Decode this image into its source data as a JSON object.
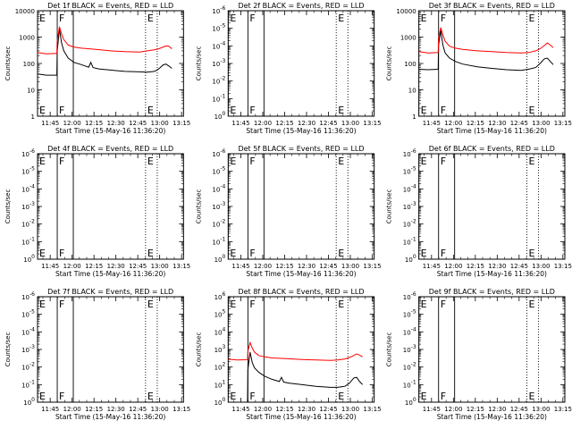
{
  "chart_data": [
    {
      "type": "line",
      "title": "Det 1f BLACK = Events, RED = LLD",
      "xlabel": "Start Time (15-May-16 11:36:20)",
      "ylabel": "Counts/sec",
      "x_tick_labels": [
        "11:45",
        "12:00",
        "12:15",
        "12:30",
        "12:45",
        "13:00",
        "13:15"
      ],
      "xlim_minutes": [
        0,
        100
      ],
      "ylim": [
        1,
        10000
      ],
      "y_scale": "log",
      "y_tick_labels": [
        "1",
        "10",
        "100",
        "1000",
        "10000"
      ],
      "markers": [
        {
          "x": 0,
          "label": "E",
          "style": "dotted"
        },
        {
          "x": 13.5,
          "label": "F",
          "style": "solid"
        },
        {
          "x": 24.5,
          "label": "",
          "style": "solid"
        },
        {
          "x": 74,
          "label": "E",
          "style": "dotted"
        },
        {
          "x": 82,
          "label": "",
          "style": "dotted"
        }
      ],
      "series": [
        {
          "color": "#000000",
          "x": [
            0,
            6,
            13.2,
            13.5,
            15,
            16.5,
            18,
            21,
            25,
            30,
            35,
            36.5,
            38,
            42,
            50,
            60,
            70,
            75,
            80,
            83,
            86,
            88,
            90,
            92
          ],
          "values": [
            40,
            36,
            36,
            300,
            2000,
            600,
            300,
            160,
            110,
            90,
            72,
            110,
            70,
            62,
            56,
            50,
            48,
            47,
            50,
            62,
            88,
            95,
            80,
            65
          ]
        },
        {
          "color": "#ff0000",
          "x": [
            0,
            6,
            13.2,
            13.5,
            15,
            16.5,
            18,
            21,
            25,
            30,
            40,
            50,
            60,
            70,
            75,
            80,
            83,
            86,
            88,
            90,
            92
          ],
          "values": [
            260,
            230,
            240,
            700,
            2500,
            1300,
            800,
            500,
            420,
            380,
            340,
            300,
            280,
            270,
            300,
            330,
            360,
            420,
            460,
            450,
            360
          ]
        }
      ]
    },
    {
      "type": "line",
      "title": "Det 2f BLACK = Events, RED = LLD",
      "xlabel": "Start Time (15-May-16 11:36:20)",
      "ylabel": "Counts/sec",
      "x_tick_labels": [
        "11:45",
        "12:00",
        "12:15",
        "12:30",
        "12:45",
        "13:00",
        "13:15"
      ],
      "xlim_minutes": [
        0,
        100
      ],
      "ylim": [
        1,
        1000000
      ],
      "y_scale": "log",
      "y_tick_labels": [
        "10^0",
        "10^-1",
        "10^-2",
        "10^-3",
        "10^-4",
        "10^-5",
        "10^-6"
      ],
      "markers": [
        {
          "x": 0,
          "label": "E",
          "style": "dotted"
        },
        {
          "x": 13.5,
          "label": "F",
          "style": "solid"
        },
        {
          "x": 24.5,
          "label": "",
          "style": "solid"
        },
        {
          "x": 74,
          "label": "E",
          "style": "dotted"
        },
        {
          "x": 82,
          "label": "",
          "style": "dotted"
        }
      ],
      "series": []
    },
    {
      "type": "line",
      "title": "Det 3f BLACK = Events, RED = LLD",
      "xlabel": "Start Time (15-May-16 11:36:20)",
      "ylabel": "Counts/sec",
      "x_tick_labels": [
        "11:45",
        "12:00",
        "12:15",
        "12:30",
        "12:45",
        "13:00",
        "13:15"
      ],
      "xlim_minutes": [
        0,
        100
      ],
      "ylim": [
        1,
        10000
      ],
      "y_scale": "log",
      "y_tick_labels": [
        "1",
        "10",
        "100",
        "1000",
        "10000"
      ],
      "markers": [
        {
          "x": 0,
          "label": "E",
          "style": "dotted"
        },
        {
          "x": 13.5,
          "label": "F",
          "style": "solid"
        },
        {
          "x": 24.5,
          "label": "",
          "style": "solid"
        },
        {
          "x": 74,
          "label": "E",
          "style": "dotted"
        },
        {
          "x": 82,
          "label": "",
          "style": "dotted"
        }
      ],
      "series": [
        {
          "color": "#000000",
          "x": [
            0,
            6,
            13.2,
            13.5,
            15,
            16.5,
            18,
            21,
            25,
            30,
            40,
            50,
            60,
            70,
            75,
            80,
            83,
            86,
            88,
            90,
            92
          ],
          "values": [
            60,
            58,
            60,
            500,
            1800,
            500,
            250,
            160,
            120,
            95,
            75,
            65,
            58,
            55,
            60,
            70,
            100,
            150,
            160,
            120,
            90
          ]
        },
        {
          "color": "#ff0000",
          "x": [
            0,
            6,
            13.2,
            13.5,
            15,
            16.5,
            18,
            21,
            25,
            30,
            40,
            50,
            60,
            70,
            75,
            80,
            83,
            86,
            88,
            90,
            92
          ],
          "values": [
            280,
            250,
            260,
            900,
            2300,
            1200,
            700,
            450,
            380,
            340,
            300,
            280,
            260,
            250,
            260,
            300,
            360,
            480,
            600,
            500,
            400
          ]
        }
      ]
    },
    {
      "type": "line",
      "title": "Det 4f BLACK = Events, RED = LLD",
      "xlabel": "Start Time (15-May-16 11:36:20)",
      "ylabel": "Counts/sec",
      "x_tick_labels": [
        "11:45",
        "12:00",
        "12:15",
        "12:30",
        "12:45",
        "13:00",
        "13:15"
      ],
      "xlim_minutes": [
        0,
        100
      ],
      "ylim": [
        1,
        1000000
      ],
      "y_scale": "log",
      "y_tick_labels": [
        "10^0",
        "10^-1",
        "10^-2",
        "10^-3",
        "10^-4",
        "10^-5",
        "10^-6"
      ],
      "markers": [
        {
          "x": 0,
          "label": "E",
          "style": "dotted"
        },
        {
          "x": 13.5,
          "label": "F",
          "style": "solid"
        },
        {
          "x": 24.5,
          "label": "",
          "style": "solid"
        },
        {
          "x": 74,
          "label": "E",
          "style": "dotted"
        },
        {
          "x": 82,
          "label": "",
          "style": "dotted"
        }
      ],
      "series": []
    },
    {
      "type": "line",
      "title": "Det 5f BLACK = Events, RED = LLD",
      "xlabel": "Start Time (15-May-16 11:36:20)",
      "ylabel": "Counts/sec",
      "x_tick_labels": [
        "11:45",
        "12:00",
        "12:15",
        "12:30",
        "12:45",
        "13:00",
        "13:15"
      ],
      "xlim_minutes": [
        0,
        100
      ],
      "ylim": [
        1,
        1000000
      ],
      "y_scale": "log",
      "y_tick_labels": [
        "10^0",
        "10^-1",
        "10^-2",
        "10^-3",
        "10^-4",
        "10^-5",
        "10^-6"
      ],
      "markers": [
        {
          "x": 0,
          "label": "E",
          "style": "dotted"
        },
        {
          "x": 13.5,
          "label": "F",
          "style": "solid"
        },
        {
          "x": 24.5,
          "label": "",
          "style": "solid"
        },
        {
          "x": 74,
          "label": "E",
          "style": "dotted"
        },
        {
          "x": 82,
          "label": "",
          "style": "dotted"
        }
      ],
      "series": []
    },
    {
      "type": "line",
      "title": "Det 6f BLACK = Events, RED = LLD",
      "xlabel": "Start Time (15-May-16 11:36:20)",
      "ylabel": "Counts/sec",
      "x_tick_labels": [
        "11:45",
        "12:00",
        "12:15",
        "12:30",
        "12:45",
        "13:00",
        "13:15"
      ],
      "xlim_minutes": [
        0,
        100
      ],
      "ylim": [
        1,
        1000000
      ],
      "y_scale": "log",
      "y_tick_labels": [
        "10^0",
        "10^-1",
        "10^-2",
        "10^-3",
        "10^-4",
        "10^-5",
        "10^-6"
      ],
      "markers": [
        {
          "x": 0,
          "label": "E",
          "style": "dotted"
        },
        {
          "x": 13.5,
          "label": "F",
          "style": "solid"
        },
        {
          "x": 24.5,
          "label": "",
          "style": "solid"
        },
        {
          "x": 74,
          "label": "E",
          "style": "dotted"
        },
        {
          "x": 82,
          "label": "",
          "style": "dotted"
        }
      ],
      "series": []
    },
    {
      "type": "line",
      "title": "Det 7f BLACK = Events, RED = LLD",
      "xlabel": "Start Time (15-May-16 11:36:20)",
      "ylabel": "Counts/sec",
      "x_tick_labels": [
        "11:45",
        "12:00",
        "12:15",
        "12:30",
        "12:45",
        "13:00",
        "13:15"
      ],
      "xlim_minutes": [
        0,
        100
      ],
      "ylim": [
        1,
        1000000
      ],
      "y_scale": "log",
      "y_tick_labels": [
        "10^0",
        "10^-1",
        "10^-2",
        "10^-3",
        "10^-4",
        "10^-5",
        "10^-6"
      ],
      "markers": [
        {
          "x": 0,
          "label": "E",
          "style": "dotted"
        },
        {
          "x": 13.5,
          "label": "F",
          "style": "solid"
        },
        {
          "x": 24.5,
          "label": "",
          "style": "solid"
        },
        {
          "x": 74,
          "label": "E",
          "style": "dotted"
        },
        {
          "x": 82,
          "label": "",
          "style": "dotted"
        }
      ],
      "series": []
    },
    {
      "type": "line",
      "title": "Det 8f BLACK = Events, RED = LLD",
      "xlabel": "Start Time (15-May-16 11:36:20)",
      "ylabel": "Counts/sec",
      "x_tick_labels": [
        "11:45",
        "12:00",
        "12:15",
        "12:30",
        "12:45",
        "13:00",
        "13:15"
      ],
      "xlim_minutes": [
        0,
        100
      ],
      "ylim": [
        1,
        1000000
      ],
      "y_scale": "log",
      "y_tick_labels": [
        "10^0",
        "10^1",
        "10^2",
        "10^3",
        "10^4",
        "10^5",
        "10^6"
      ],
      "markers": [
        {
          "x": 0,
          "label": "E",
          "style": "dotted"
        },
        {
          "x": 13.5,
          "label": "F",
          "style": "solid"
        },
        {
          "x": 24.5,
          "label": "",
          "style": "solid"
        },
        {
          "x": 74,
          "label": "E",
          "style": "dotted"
        },
        {
          "x": 82,
          "label": "",
          "style": "dotted"
        }
      ],
      "series": [
        {
          "color": "#000000",
          "x": [
            0,
            6,
            13.2,
            13.5,
            15,
            16.5,
            18,
            21,
            25,
            30,
            35,
            36.5,
            38,
            42,
            50,
            60,
            70,
            75,
            80,
            83,
            86,
            88,
            90,
            92
          ],
          "values": [
            1,
            1,
            1,
            70,
            700,
            180,
            90,
            50,
            30,
            20,
            15,
            26,
            14,
            12,
            10,
            8,
            7,
            7,
            8,
            12,
            24,
            26,
            15,
            10
          ]
        },
        {
          "color": "#ff0000",
          "x": [
            0,
            6,
            13.2,
            13.5,
            15,
            16.5,
            18,
            21,
            25,
            30,
            40,
            50,
            60,
            70,
            75,
            80,
            83,
            86,
            88,
            90,
            92
          ],
          "values": [
            280,
            250,
            260,
            800,
            2500,
            1200,
            700,
            450,
            380,
            330,
            300,
            270,
            250,
            240,
            250,
            290,
            350,
            450,
            560,
            480,
            380
          ]
        }
      ]
    },
    {
      "type": "line",
      "title": "Det 9f BLACK = Events, RED = LLD",
      "xlabel": "Start Time (15-May-16 11:36:20)",
      "ylabel": "Counts/sec",
      "x_tick_labels": [
        "11:45",
        "12:00",
        "12:15",
        "12:30",
        "12:45",
        "13:00",
        "13:15"
      ],
      "xlim_minutes": [
        0,
        100
      ],
      "ylim": [
        1,
        1000000
      ],
      "y_scale": "log",
      "y_tick_labels": [
        "10^0",
        "10^-1",
        "10^-2",
        "10^-3",
        "10^-4",
        "10^-5",
        "10^-6"
      ],
      "markers": [
        {
          "x": 0,
          "label": "E",
          "style": "dotted"
        },
        {
          "x": 13.5,
          "label": "F",
          "style": "solid"
        },
        {
          "x": 24.5,
          "label": "",
          "style": "solid"
        },
        {
          "x": 74,
          "label": "E",
          "style": "dotted"
        },
        {
          "x": 82,
          "label": "",
          "style": "dotted"
        }
      ],
      "series": []
    }
  ]
}
